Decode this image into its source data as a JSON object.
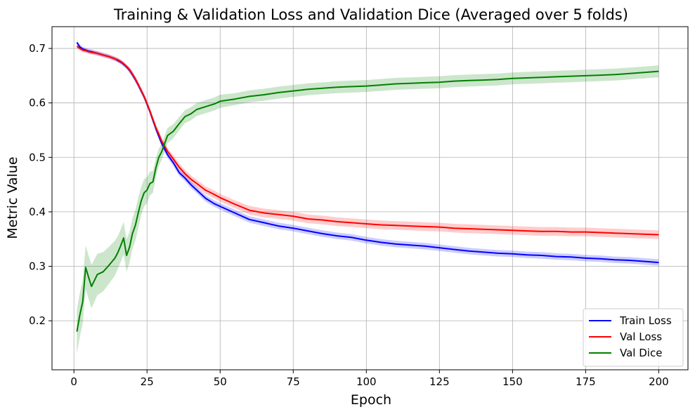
{
  "chart_data": {
    "type": "line",
    "title": "Training & Validation Loss and Validation Dice (Averaged over 5 folds)",
    "xlabel": "Epoch",
    "ylabel": "Metric Value",
    "xlim": [
      -7.5,
      210
    ],
    "ylim": [
      0.11,
      0.74
    ],
    "xticks": [
      0,
      25,
      50,
      75,
      100,
      125,
      150,
      175,
      200
    ],
    "yticks": [
      0.2,
      0.3,
      0.4,
      0.5,
      0.6,
      0.7
    ],
    "grid": true,
    "legend_position": "lower-right",
    "band": "shaded standard deviation around each mean curve",
    "x": [
      1,
      2,
      3,
      4,
      5,
      6,
      8,
      10,
      12,
      14,
      15,
      16,
      17,
      18,
      19,
      20,
      21,
      22,
      23,
      24,
      25,
      26,
      27,
      28,
      29,
      30,
      32,
      34,
      36,
      38,
      40,
      42,
      45,
      48,
      50,
      55,
      60,
      65,
      70,
      75,
      80,
      85,
      90,
      95,
      100,
      105,
      110,
      115,
      120,
      125,
      130,
      135,
      140,
      145,
      150,
      155,
      160,
      165,
      170,
      175,
      180,
      185,
      190,
      195,
      200
    ],
    "series": [
      {
        "name": "Train Loss",
        "color": "#0000ff",
        "values": [
          0.711,
          0.703,
          0.699,
          0.697,
          0.695,
          0.694,
          0.691,
          0.688,
          0.685,
          0.681,
          0.678,
          0.675,
          0.671,
          0.666,
          0.66,
          0.652,
          0.643,
          0.633,
          0.622,
          0.611,
          0.598,
          0.584,
          0.568,
          0.553,
          0.539,
          0.526,
          0.505,
          0.49,
          0.472,
          0.462,
          0.45,
          0.44,
          0.425,
          0.415,
          0.41,
          0.398,
          0.386,
          0.38,
          0.374,
          0.37,
          0.365,
          0.36,
          0.356,
          0.353,
          0.348,
          0.344,
          0.341,
          0.339,
          0.337,
          0.334,
          0.331,
          0.328,
          0.326,
          0.324,
          0.323,
          0.321,
          0.32,
          0.318,
          0.317,
          0.315,
          0.314,
          0.312,
          0.311,
          0.309,
          0.307
        ],
        "std": [
          0.004,
          0.004,
          0.004,
          0.004,
          0.004,
          0.004,
          0.004,
          0.004,
          0.004,
          0.004,
          0.004,
          0.004,
          0.004,
          0.004,
          0.005,
          0.005,
          0.005,
          0.005,
          0.005,
          0.005,
          0.005,
          0.005,
          0.005,
          0.005,
          0.005,
          0.006,
          0.006,
          0.006,
          0.006,
          0.006,
          0.006,
          0.006,
          0.006,
          0.006,
          0.006,
          0.006,
          0.006,
          0.006,
          0.006,
          0.006,
          0.006,
          0.006,
          0.006,
          0.006,
          0.006,
          0.006,
          0.006,
          0.006,
          0.006,
          0.006,
          0.006,
          0.006,
          0.006,
          0.006,
          0.006,
          0.006,
          0.006,
          0.006,
          0.006,
          0.006,
          0.006,
          0.006,
          0.006,
          0.006,
          0.006
        ]
      },
      {
        "name": "Val Loss",
        "color": "#ff0000",
        "values": [
          0.704,
          0.7,
          0.697,
          0.696,
          0.694,
          0.693,
          0.691,
          0.688,
          0.685,
          0.681,
          0.679,
          0.676,
          0.672,
          0.667,
          0.661,
          0.653,
          0.644,
          0.634,
          0.623,
          0.612,
          0.599,
          0.585,
          0.57,
          0.555,
          0.543,
          0.53,
          0.511,
          0.497,
          0.482,
          0.47,
          0.46,
          0.452,
          0.44,
          0.432,
          0.426,
          0.414,
          0.403,
          0.398,
          0.395,
          0.392,
          0.387,
          0.385,
          0.382,
          0.38,
          0.378,
          0.376,
          0.375,
          0.374,
          0.373,
          0.372,
          0.37,
          0.369,
          0.368,
          0.367,
          0.366,
          0.365,
          0.364,
          0.364,
          0.363,
          0.363,
          0.362,
          0.361,
          0.36,
          0.359,
          0.358
        ],
        "std": [
          0.004,
          0.004,
          0.004,
          0.004,
          0.004,
          0.004,
          0.004,
          0.004,
          0.004,
          0.004,
          0.004,
          0.004,
          0.004,
          0.004,
          0.005,
          0.005,
          0.005,
          0.005,
          0.005,
          0.005,
          0.006,
          0.006,
          0.006,
          0.006,
          0.007,
          0.007,
          0.007,
          0.007,
          0.007,
          0.007,
          0.007,
          0.007,
          0.007,
          0.007,
          0.007,
          0.007,
          0.008,
          0.008,
          0.008,
          0.008,
          0.008,
          0.008,
          0.008,
          0.008,
          0.008,
          0.008,
          0.008,
          0.008,
          0.008,
          0.008,
          0.008,
          0.008,
          0.008,
          0.008,
          0.008,
          0.008,
          0.008,
          0.008,
          0.008,
          0.008,
          0.008,
          0.008,
          0.008,
          0.008,
          0.008
        ]
      },
      {
        "name": "Val Dice",
        "color": "#008000",
        "values": [
          0.18,
          0.21,
          0.235,
          0.298,
          0.28,
          0.263,
          0.285,
          0.29,
          0.302,
          0.315,
          0.325,
          0.338,
          0.352,
          0.32,
          0.335,
          0.36,
          0.375,
          0.398,
          0.42,
          0.435,
          0.44,
          0.452,
          0.455,
          0.48,
          0.5,
          0.51,
          0.54,
          0.548,
          0.562,
          0.575,
          0.58,
          0.588,
          0.593,
          0.598,
          0.603,
          0.607,
          0.612,
          0.615,
          0.619,
          0.622,
          0.625,
          0.627,
          0.629,
          0.63,
          0.631,
          0.633,
          0.635,
          0.636,
          0.637,
          0.638,
          0.64,
          0.641,
          0.642,
          0.643,
          0.645,
          0.646,
          0.647,
          0.648,
          0.649,
          0.65,
          0.651,
          0.652,
          0.654,
          0.656,
          0.658
        ],
        "std": [
          0.04,
          0.04,
          0.04,
          0.04,
          0.04,
          0.04,
          0.038,
          0.036,
          0.034,
          0.032,
          0.03,
          0.03,
          0.03,
          0.03,
          0.028,
          0.028,
          0.028,
          0.028,
          0.026,
          0.025,
          0.024,
          0.022,
          0.02,
          0.018,
          0.016,
          0.015,
          0.014,
          0.013,
          0.012,
          0.012,
          0.012,
          0.012,
          0.012,
          0.012,
          0.012,
          0.011,
          0.011,
          0.011,
          0.011,
          0.011,
          0.011,
          0.011,
          0.011,
          0.011,
          0.011,
          0.011,
          0.011,
          0.011,
          0.011,
          0.011,
          0.011,
          0.011,
          0.011,
          0.011,
          0.011,
          0.011,
          0.011,
          0.011,
          0.011,
          0.011,
          0.011,
          0.011,
          0.011,
          0.011,
          0.011
        ]
      }
    ]
  }
}
